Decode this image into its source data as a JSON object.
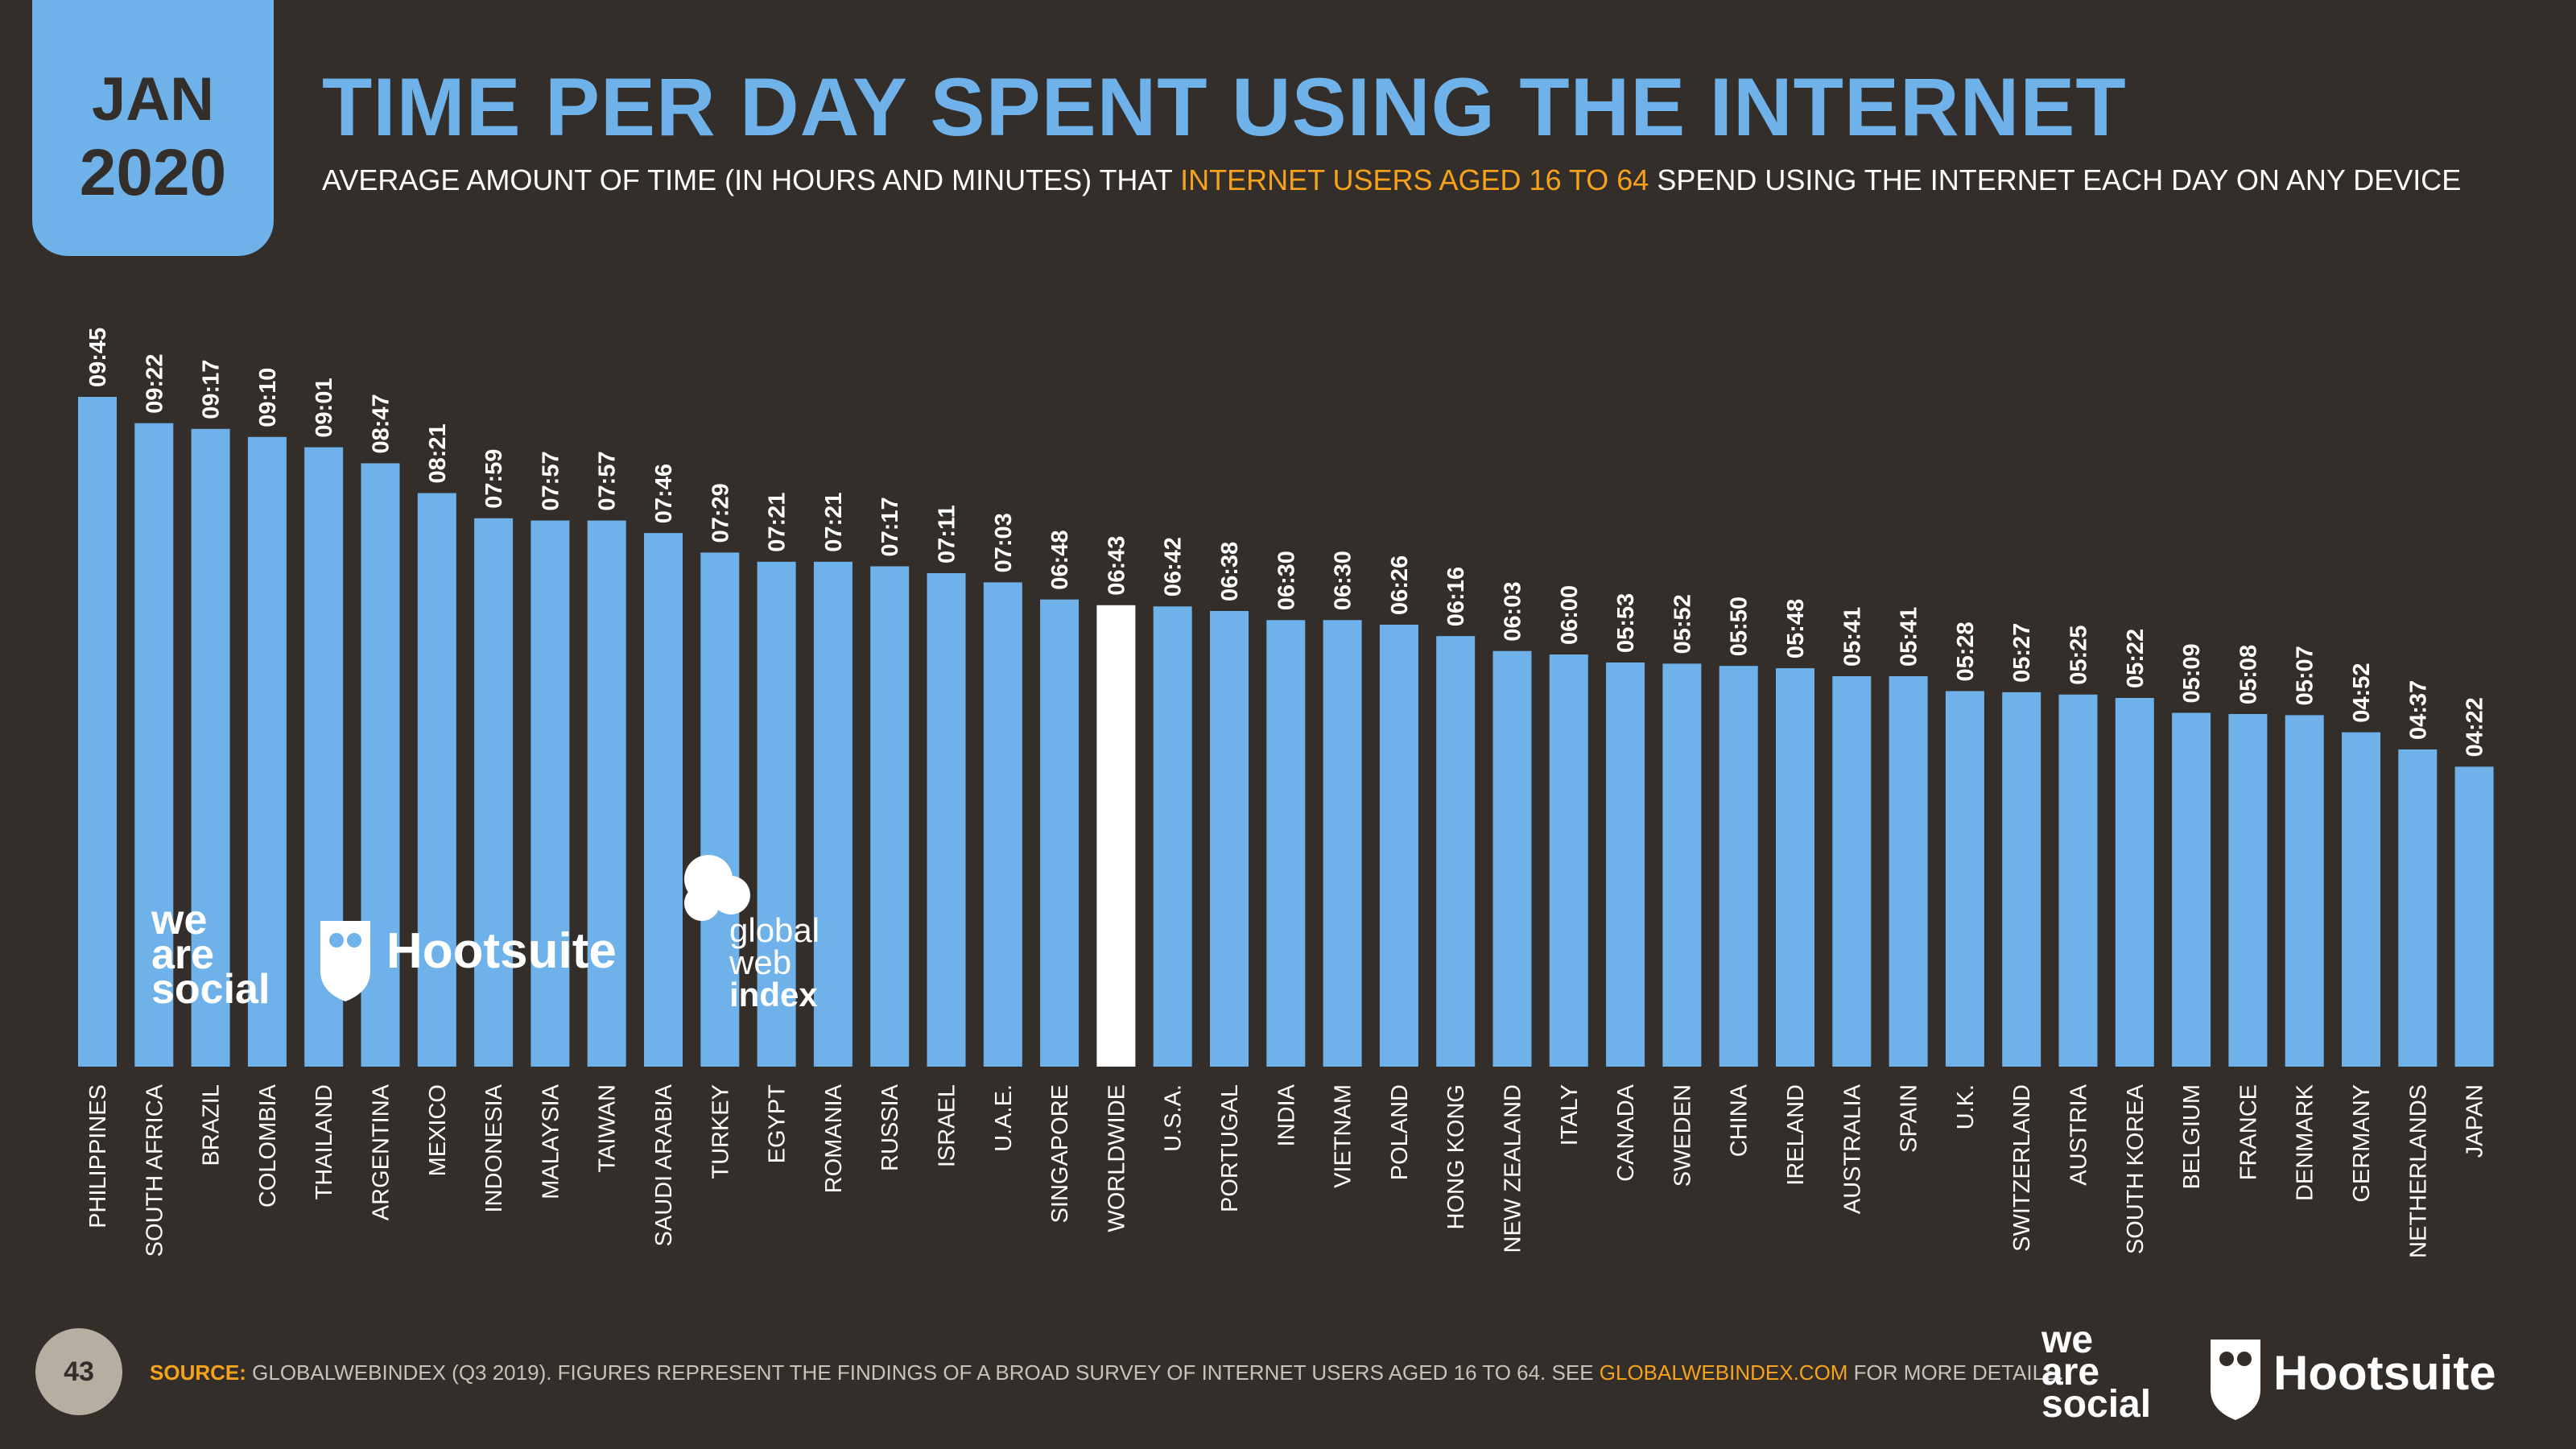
{
  "header": {
    "month": "JAN",
    "year": "2020",
    "title": "TIME PER DAY SPENT USING THE INTERNET",
    "subtitle_pre": "AVERAGE AMOUNT OF TIME (IN HOURS AND MINUTES) THAT ",
    "subtitle_highlight": "INTERNET USERS AGED 16 TO 64",
    "subtitle_post": " SPEND USING THE INTERNET EACH DAY ON ANY DEVICE"
  },
  "colors": {
    "background": "#332e2a",
    "bar": "#6fb2ea",
    "highlight_bar": "#ffffff",
    "accent": "#f7a21b"
  },
  "chart_data": {
    "type": "bar",
    "categories": [
      "PHILIPPINES",
      "SOUTH AFRICA",
      "BRAZIL",
      "COLOMBIA",
      "THAILAND",
      "ARGENTINA",
      "MEXICO",
      "INDONESIA",
      "MALAYSIA",
      "TAIWAN",
      "SAUDI ARABIA",
      "TURKEY",
      "EGYPT",
      "ROMANIA",
      "RUSSIA",
      "ISRAEL",
      "U.A.E.",
      "SINGAPORE",
      "WORLDWIDE",
      "U.S.A.",
      "PORTUGAL",
      "INDIA",
      "VIETNAM",
      "POLAND",
      "HONG KONG",
      "NEW ZEALAND",
      "ITALY",
      "CANADA",
      "SWEDEN",
      "CHINA",
      "IRELAND",
      "AUSTRALIA",
      "SPAIN",
      "U.K.",
      "SWITZERLAND",
      "AUSTRIA",
      "SOUTH KOREA",
      "BELGIUM",
      "FRANCE",
      "DENMARK",
      "GERMANY",
      "NETHERLANDS",
      "JAPAN"
    ],
    "labels": [
      "09:45",
      "09:22",
      "09:17",
      "09:10",
      "09:01",
      "08:47",
      "08:21",
      "07:59",
      "07:57",
      "07:57",
      "07:46",
      "07:29",
      "07:21",
      "07:21",
      "07:17",
      "07:11",
      "07:03",
      "06:48",
      "06:43",
      "06:42",
      "06:38",
      "06:30",
      "06:30",
      "06:26",
      "06:16",
      "06:03",
      "06:00",
      "05:53",
      "05:52",
      "05:50",
      "05:48",
      "05:41",
      "05:41",
      "05:28",
      "05:27",
      "05:25",
      "05:22",
      "05:09",
      "05:08",
      "05:07",
      "04:52",
      "04:37",
      "04:22"
    ],
    "values_minutes": [
      585,
      562,
      557,
      550,
      541,
      527,
      501,
      479,
      477,
      477,
      466,
      449,
      441,
      441,
      437,
      431,
      423,
      408,
      403,
      402,
      398,
      390,
      390,
      386,
      376,
      363,
      360,
      353,
      352,
      350,
      348,
      341,
      341,
      328,
      327,
      325,
      322,
      309,
      308,
      307,
      292,
      277,
      262
    ],
    "highlight": "WORLDWIDE",
    "ylim": [
      0,
      585
    ]
  },
  "logos": {
    "chart_logo_1": [
      "we",
      "are",
      "social"
    ],
    "chart_logo_2": "Hootsuite",
    "chart_logo_3": [
      "global",
      "web",
      "index"
    ],
    "footer_logo_1": [
      "we",
      "are",
      "social"
    ],
    "footer_logo_2": "Hootsuite"
  },
  "footer": {
    "page_number": "43",
    "source_label": "SOURCE:",
    "source_text": " GLOBALWEBINDEX (Q3 2019). FIGURES REPRESENT THE FINDINGS OF A BROAD SURVEY OF INTERNET USERS AGED 16 TO 64. SEE ",
    "source_link": "GLOBALWEBINDEX.COM",
    "source_end": " FOR MORE DETAILS."
  }
}
